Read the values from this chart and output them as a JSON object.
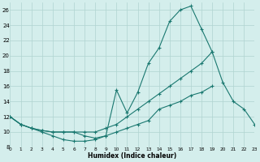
{
  "xlabel": "Humidex (Indice chaleur)",
  "bg_color": "#d4eeec",
  "grid_color": "#b0d4d0",
  "line_color": "#1a7870",
  "xlim": [
    0,
    23
  ],
  "ylim": [
    8,
    27
  ],
  "yticks": [
    8,
    10,
    12,
    14,
    16,
    18,
    20,
    22,
    24,
    26
  ],
  "xticks": [
    0,
    1,
    2,
    3,
    4,
    5,
    6,
    7,
    8,
    9,
    10,
    11,
    12,
    13,
    14,
    15,
    16,
    17,
    18,
    19,
    20,
    21,
    22,
    23
  ],
  "series": [
    {
      "x": [
        0,
        1,
        2,
        3,
        4,
        5,
        6,
        7,
        8,
        9,
        10,
        11,
        12,
        13,
        14,
        15,
        16,
        17,
        18,
        19
      ],
      "y": [
        12,
        11,
        10.5,
        10,
        9.5,
        9,
        8.8,
        8.8,
        9,
        9.5,
        15.5,
        12.5,
        15.2,
        19,
        21,
        24.5,
        26,
        26.5,
        23.5,
        20.5
      ]
    },
    {
      "x": [
        0,
        1,
        2,
        3,
        4,
        5,
        6,
        7,
        8,
        9,
        10,
        11,
        12,
        13,
        14,
        15,
        16,
        17,
        18,
        19,
        20,
        21,
        22,
        23
      ],
      "y": [
        12,
        11,
        10.5,
        10.2,
        10,
        10,
        10,
        10,
        10,
        10.5,
        11,
        12,
        13,
        14,
        15,
        16,
        17,
        18,
        19,
        20.5,
        16.5,
        14,
        13,
        11
      ]
    },
    {
      "x": [
        0,
        1,
        2,
        3,
        4,
        5,
        6,
        7,
        8,
        9,
        10,
        11,
        12,
        13,
        14,
        15,
        16,
        17,
        18,
        19,
        20,
        21,
        22,
        23
      ],
      "y": [
        12,
        11,
        10.5,
        10.2,
        10,
        10,
        10,
        9.5,
        9.2,
        9.5,
        10,
        10.5,
        11,
        11.5,
        13,
        13.5,
        14,
        14.8,
        15.2,
        16,
        null,
        null,
        null,
        null
      ]
    }
  ]
}
